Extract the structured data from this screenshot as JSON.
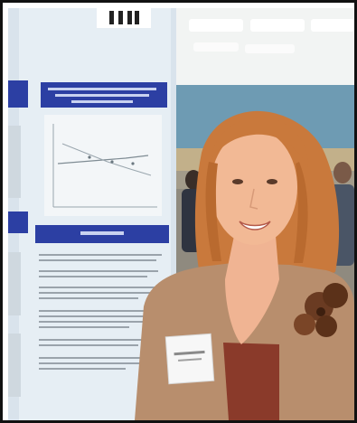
{
  "photo": {
    "subject": "",
    "palette": {
      "frame": "#111111",
      "poster_board": "#d9e3ec",
      "poster_header": "#2c3fa3",
      "ceiling": "#f2f4f3",
      "wall": "#6e9bb3",
      "hair": "#c9793c",
      "skin": "#f0b493",
      "cardigan": "#b88e6d",
      "camisole": "#8a3a2a",
      "flower": "#6a3b22",
      "name_badge": "#f7f7f7"
    }
  }
}
